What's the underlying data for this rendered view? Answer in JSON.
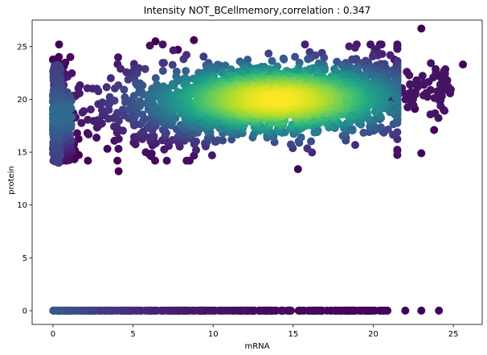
{
  "chart_data": {
    "type": "scatter",
    "title": "Intensity NOT_BCellmemory,correlation : 0.347",
    "xlabel": "mRNA",
    "ylabel": "protein",
    "xlim": [
      -1.3,
      26.8
    ],
    "ylim": [
      -1.3,
      27.5
    ],
    "xticks": [
      0,
      5,
      10,
      15,
      20,
      25
    ],
    "yticks": [
      0,
      5,
      10,
      15,
      20,
      25
    ],
    "grid": false,
    "colormap": "viridis (point density)",
    "correlation": 0.347,
    "clusters": [
      {
        "x_range": [
          0,
          20.9
        ],
        "y": 0,
        "note": "dense band of points at protein = 0"
      },
      {
        "x_center": 14,
        "y_center": 20,
        "note": "main high-density cloud"
      }
    ],
    "outliers": [
      {
        "x": 4.1,
        "y": 13.2
      },
      {
        "x": 6.4,
        "y": 25.5
      },
      {
        "x": 8.8,
        "y": 25.6
      },
      {
        "x": 7.8,
        "y": 24.7
      },
      {
        "x": 15.3,
        "y": 13.4
      },
      {
        "x": 23.0,
        "y": 26.7
      },
      {
        "x": 23.0,
        "y": 14.9
      },
      {
        "x": 23.8,
        "y": 17.1
      },
      {
        "x": 24.4,
        "y": 19.0
      },
      {
        "x": 22.6,
        "y": 19.1
      },
      {
        "x": 25.6,
        "y": 23.3
      },
      {
        "x": 22.0,
        "y": 0
      },
      {
        "x": 23.0,
        "y": 0
      },
      {
        "x": 24.1,
        "y": 0
      }
    ]
  }
}
